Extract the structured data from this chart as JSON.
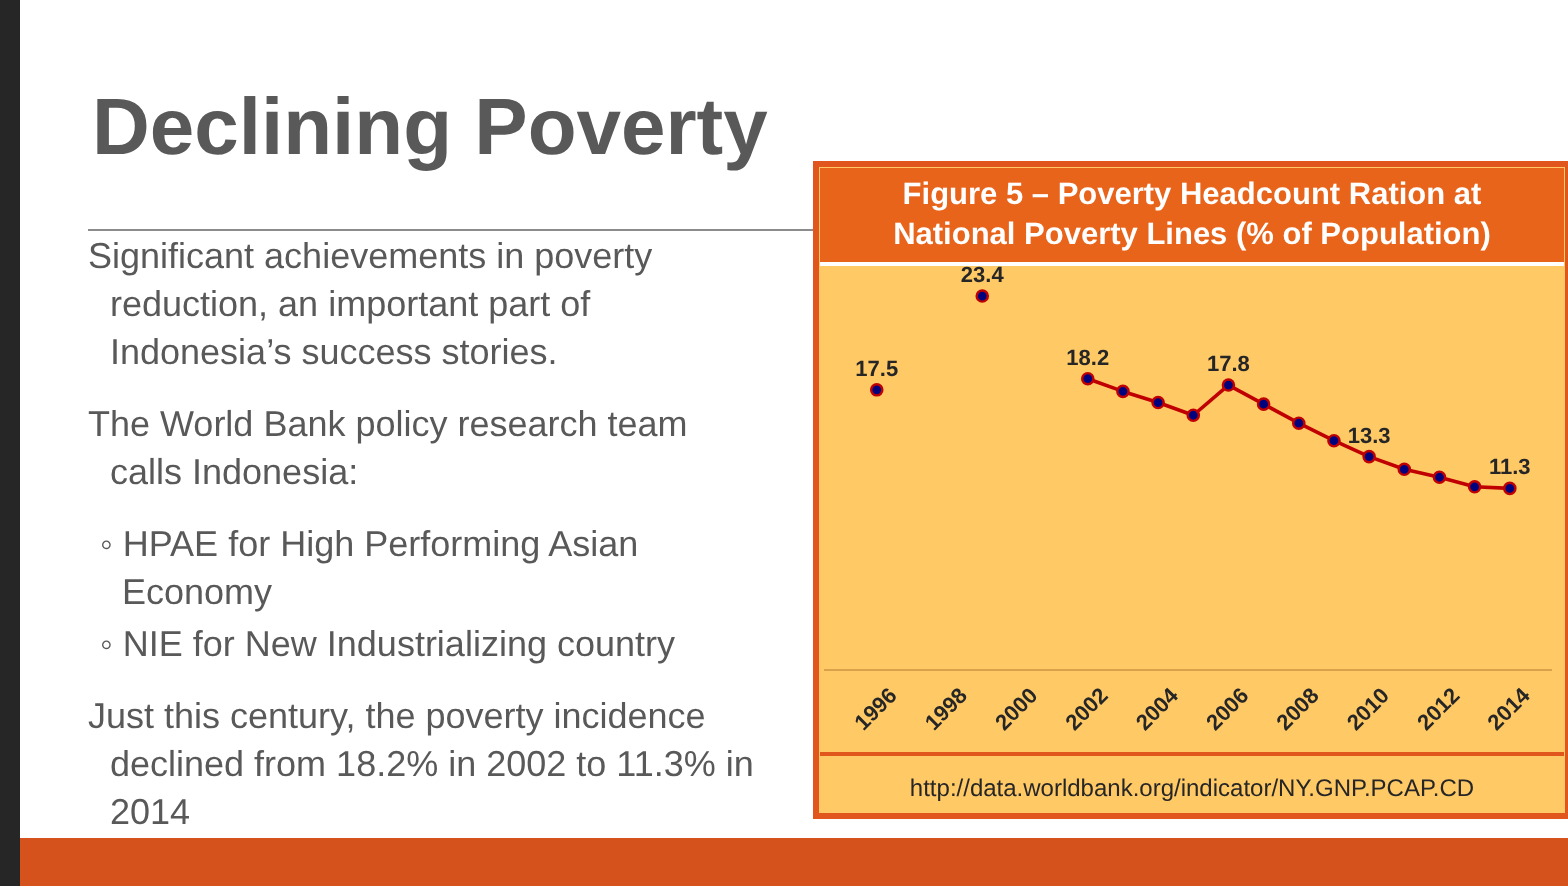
{
  "chart_data": {
    "type": "line",
    "title": "Declining Poverty",
    "subtitle": "Figure 5 – Poverty Headcount Ration at National Poverty Lines (% of Population)",
    "x": [
      1996,
      1997,
      1998,
      1999,
      2000,
      2001,
      2002,
      2003,
      2004,
      2005,
      2006,
      2007,
      2008,
      2009,
      2010,
      2011,
      2012,
      2013,
      2014
    ],
    "xlim": [
      1994.5,
      2015.2
    ],
    "xticks": [
      1996,
      1998,
      2000,
      2002,
      2004,
      2006,
      2008,
      2010,
      2012,
      2014
    ],
    "series": [
      {
        "color": "#c00000",
        "values": [
          17.5,
          null,
          null,
          23.4,
          null,
          null,
          18.2,
          17.4,
          16.7,
          15.9,
          17.8,
          16.6,
          15.4,
          14.3,
          13.3,
          12.5,
          12.0,
          11.4,
          11.3
        ],
        "value_labels": [
          "17.5",
          null,
          null,
          "23.4",
          null,
          null,
          "18.2",
          null,
          null,
          null,
          "17.8",
          null,
          null,
          null,
          "13.3",
          null,
          null,
          null,
          "11.3"
        ]
      }
    ],
    "marker": "circle",
    "grid": false,
    "legend": false,
    "annotations": [
      "Significant achievements in poverty reduction, an important part of Indonesia’s success stories.",
      "The World Bank policy research team calls Indonesia:",
      "◦ HPAE for High Performing Asian Economy",
      "◦ NIE for New Industrializing country",
      "Just this century, the poverty incidence declined from 18.2% in 2002 to 11.3% in 2014",
      "http://data.worldbank.org/indicator/NY.GNP.PCAP.CD"
    ]
  }
}
